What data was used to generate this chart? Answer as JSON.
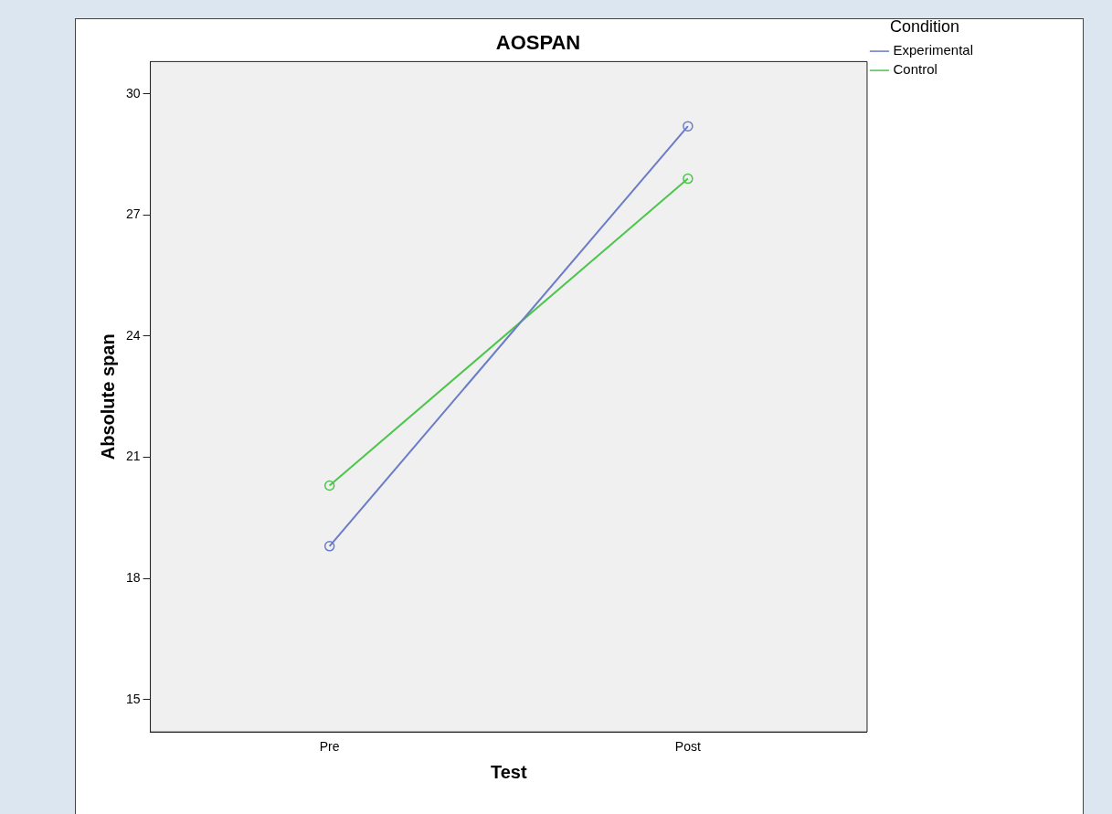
{
  "chart_data": {
    "type": "line",
    "title": "AOSPAN",
    "xlabel": "Test",
    "ylabel": "Absolute span",
    "legend_title": "Condition",
    "categories": [
      "Pre",
      "Post"
    ],
    "series": [
      {
        "name": "Experimental",
        "color": "#6a7cc6",
        "values": [
          18.8,
          29.2
        ]
      },
      {
        "name": "Control",
        "color": "#4cc54c",
        "values": [
          20.3,
          27.9
        ]
      }
    ],
    "ylim": [
      14.2,
      30.8
    ],
    "yticks": [
      15,
      18,
      21,
      24,
      27,
      30
    ],
    "grid": false,
    "legend": "right",
    "marker": "circle",
    "line_style": "solid"
  }
}
